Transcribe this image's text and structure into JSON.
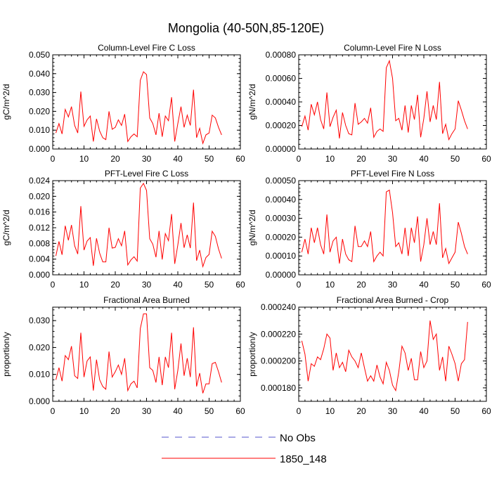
{
  "figure": {
    "title": "Mongolia (40-50N,85-120E)",
    "legend": {
      "placement": "bottom-center",
      "entries": [
        {
          "label": "No Obs",
          "color": "#5555cc",
          "style": "dashed"
        },
        {
          "label": "1850_148",
          "color": "#ff0000",
          "style": "solid"
        }
      ]
    },
    "series_color": "#ff0000"
  },
  "chart_data": [
    {
      "type": "line",
      "title": "Column-Level Fire C Loss",
      "ylabel": "gC/m^2/d",
      "xlim": [
        0,
        60
      ],
      "ylim": [
        0,
        0.05
      ],
      "xticks": [
        "0",
        "10",
        "20",
        "30",
        "40",
        "50",
        "60"
      ],
      "yticks": [
        0,
        0.01,
        0.02,
        0.03,
        0.04,
        0.05
      ],
      "ytick_labels": [
        "0.000",
        "0.010",
        "0.020",
        "0.030",
        "0.040",
        "0.050"
      ],
      "series": [
        {
          "name": "1850_148",
          "x": [
            1,
            2,
            3,
            4,
            5,
            6,
            7,
            8,
            9,
            10,
            11,
            12,
            13,
            14,
            15,
            16,
            17,
            18,
            19,
            20,
            21,
            22,
            23,
            24,
            25,
            26,
            27,
            28,
            29,
            30,
            31,
            32,
            33,
            34,
            35,
            36,
            37,
            38,
            39,
            40,
            41,
            42,
            43,
            44,
            45,
            46,
            47,
            48,
            49,
            50,
            51,
            52,
            53,
            54
          ],
          "y": [
            0.0085,
            0.0135,
            0.008,
            0.021,
            0.017,
            0.0225,
            0.0125,
            0.0085,
            0.0305,
            0.012,
            0.0155,
            0.0175,
            0.004,
            0.016,
            0.0095,
            0.006,
            0.005,
            0.02,
            0.0105,
            0.0115,
            0.0155,
            0.0125,
            0.0185,
            0.004,
            0.0065,
            0.008,
            0.0065,
            0.0365,
            0.041,
            0.0395,
            0.0165,
            0.0135,
            0.0075,
            0.019,
            0.0065,
            0.0175,
            0.015,
            0.0275,
            0.004,
            0.0135,
            0.0225,
            0.0115,
            0.018,
            0.0125,
            0.0315,
            0.006,
            0.011,
            0.003,
            0.0075,
            0.0085,
            0.018,
            0.0165,
            0.0115,
            0.0075
          ]
        }
      ]
    },
    {
      "type": "line",
      "title": "Column-Level Fire N Loss",
      "ylabel": "gN/m^2/d",
      "xlim": [
        0,
        60
      ],
      "ylim": [
        0,
        0.0008
      ],
      "xticks": [
        "0",
        "10",
        "20",
        "30",
        "40",
        "50",
        "60"
      ],
      "yticks": [
        0,
        0.0002,
        0.0004,
        0.0006,
        0.0008
      ],
      "ytick_labels": [
        "0.00000",
        "0.00020",
        "0.00040",
        "0.00060",
        "0.00080"
      ],
      "series": [
        {
          "name": "1850_148",
          "x": [
            1,
            2,
            3,
            4,
            5,
            6,
            7,
            8,
            9,
            10,
            11,
            12,
            13,
            14,
            15,
            16,
            17,
            18,
            19,
            20,
            21,
            22,
            23,
            24,
            25,
            26,
            27,
            28,
            29,
            30,
            31,
            32,
            33,
            34,
            35,
            36,
            37,
            38,
            39,
            40,
            41,
            42,
            43,
            44,
            45,
            46,
            47,
            48,
            49,
            50,
            51,
            52,
            53,
            54
          ],
          "y": [
            0.00019,
            0.00028,
            0.00016,
            0.00038,
            0.00029,
            0.0004,
            0.00025,
            0.00017,
            0.00048,
            0.00019,
            0.00027,
            0.00033,
            9e-05,
            0.00031,
            0.0002,
            0.00013,
            0.00012,
            0.00039,
            0.00021,
            0.00023,
            0.00026,
            0.00022,
            0.00035,
            0.0001,
            0.00015,
            0.00017,
            0.00015,
            0.00069,
            0.00075,
            0.0006,
            0.00024,
            0.00026,
            0.00016,
            0.00037,
            0.00014,
            0.00037,
            0.00025,
            0.00046,
            0.0001,
            0.00026,
            0.00049,
            0.00023,
            0.00037,
            0.00025,
            0.00057,
            0.00013,
            0.00021,
            8e-05,
            0.00013,
            0.00017,
            0.00041,
            0.00033,
            0.00024,
            0.00017
          ]
        }
      ]
    },
    {
      "type": "line",
      "title": "PFT-Level Fire C Loss",
      "ylabel": "gC/m^2/d",
      "xlim": [
        0,
        60
      ],
      "ylim": [
        0,
        0.024
      ],
      "xticks": [
        "0",
        "10",
        "20",
        "30",
        "40",
        "50",
        "60"
      ],
      "yticks": [
        0,
        0.004,
        0.008,
        0.012,
        0.016,
        0.02,
        0.024
      ],
      "ytick_labels": [
        "0.000",
        "0.004",
        "0.008",
        "0.012",
        "0.016",
        "0.020",
        "0.024"
      ],
      "series": [
        {
          "name": "1850_148",
          "x": [
            1,
            2,
            3,
            4,
            5,
            6,
            7,
            8,
            9,
            10,
            11,
            12,
            13,
            14,
            15,
            16,
            17,
            18,
            19,
            20,
            21,
            22,
            23,
            24,
            25,
            26,
            27,
            28,
            29,
            30,
            31,
            32,
            33,
            34,
            35,
            36,
            37,
            38,
            39,
            40,
            41,
            42,
            43,
            44,
            45,
            46,
            47,
            48,
            49,
            50,
            51,
            52,
            53,
            54
          ],
          "y": [
            0.0048,
            0.0085,
            0.0051,
            0.0125,
            0.0088,
            0.0127,
            0.0074,
            0.0053,
            0.0175,
            0.0063,
            0.0086,
            0.0095,
            0.0023,
            0.0093,
            0.0055,
            0.0033,
            0.0033,
            0.012,
            0.0068,
            0.007,
            0.0092,
            0.0074,
            0.0112,
            0.0025,
            0.0038,
            0.0046,
            0.0035,
            0.0221,
            0.0233,
            0.0215,
            0.0092,
            0.0078,
            0.0045,
            0.0112,
            0.0039,
            0.0105,
            0.0087,
            0.0155,
            0.0028,
            0.0076,
            0.0132,
            0.0069,
            0.0102,
            0.0068,
            0.0184,
            0.0036,
            0.0063,
            0.0021,
            0.0044,
            0.0052,
            0.0111,
            0.0098,
            0.0066,
            0.0042
          ]
        }
      ]
    },
    {
      "type": "line",
      "title": "PFT-Level Fire N Loss",
      "ylabel": "gN/m^2/d",
      "xlim": [
        0,
        60
      ],
      "ylim": [
        0,
        0.0005
      ],
      "xticks": [
        "0",
        "10",
        "20",
        "30",
        "40",
        "50",
        "60"
      ],
      "yticks": [
        0,
        0.0001,
        0.0002,
        0.0003,
        0.0004,
        0.0005
      ],
      "ytick_labels": [
        "0.00000",
        "0.00010",
        "0.00020",
        "0.00030",
        "0.00040",
        "0.00050"
      ],
      "series": [
        {
          "name": "1850_148",
          "x": [
            1,
            2,
            3,
            4,
            5,
            6,
            7,
            8,
            9,
            10,
            11,
            12,
            13,
            14,
            15,
            16,
            17,
            18,
            19,
            20,
            21,
            22,
            23,
            24,
            25,
            26,
            27,
            28,
            29,
            30,
            31,
            32,
            33,
            34,
            35,
            36,
            37,
            38,
            39,
            40,
            41,
            42,
            43,
            44,
            45,
            46,
            47,
            48,
            49,
            50,
            51,
            52,
            53,
            54
          ],
          "y": [
            0.00012,
            0.00019,
            0.00011,
            0.00025,
            0.00017,
            0.00025,
            0.00016,
            0.00011,
            0.00032,
            0.00012,
            0.00018,
            0.0002,
            6e-05,
            0.00019,
            0.00011,
            8e-05,
            7e-05,
            0.00026,
            0.00015,
            0.00015,
            0.00018,
            0.00015,
            0.00023,
            7e-05,
            0.0001,
            0.00012,
            0.0001,
            0.00044,
            0.00045,
            0.00033,
            0.00015,
            0.00017,
            0.00011,
            0.00025,
            0.0001,
            0.00025,
            0.00017,
            0.00031,
            7e-05,
            0.00016,
            0.0003,
            0.00016,
            0.00023,
            0.00016,
            0.00038,
            9e-05,
            0.00014,
            6e-05,
            9e-05,
            0.00012,
            0.00028,
            0.00022,
            0.00015,
            0.00011
          ]
        }
      ]
    },
    {
      "type": "line",
      "title": "Fractional Area Burned",
      "ylabel": "proportion/y",
      "xlim": [
        0,
        60
      ],
      "ylim": [
        0,
        0.035
      ],
      "xticks": [
        "0",
        "10",
        "20",
        "30",
        "40",
        "50",
        "60"
      ],
      "yticks": [
        0,
        0.01,
        0.02,
        0.03
      ],
      "ytick_labels": [
        "0.000",
        "0.010",
        "0.020",
        "0.030"
      ],
      "series": [
        {
          "name": "1850_148",
          "x": [
            1,
            2,
            3,
            4,
            5,
            6,
            7,
            8,
            9,
            10,
            11,
            12,
            13,
            14,
            15,
            16,
            17,
            18,
            19,
            20,
            21,
            22,
            23,
            24,
            25,
            26,
            27,
            28,
            29,
            30,
            31,
            32,
            33,
            34,
            35,
            36,
            37,
            38,
            39,
            40,
            41,
            42,
            43,
            44,
            45,
            46,
            47,
            48,
            49,
            50,
            51,
            52,
            53,
            54
          ],
          "y": [
            0.008,
            0.0125,
            0.0075,
            0.017,
            0.0155,
            0.0205,
            0.0095,
            0.0085,
            0.0255,
            0.009,
            0.015,
            0.0165,
            0.004,
            0.0155,
            0.008,
            0.0055,
            0.0045,
            0.0185,
            0.009,
            0.011,
            0.0135,
            0.01,
            0.016,
            0.004,
            0.0065,
            0.0075,
            0.005,
            0.027,
            0.0325,
            0.0325,
            0.0125,
            0.0115,
            0.007,
            0.0165,
            0.006,
            0.0165,
            0.0125,
            0.0255,
            0.0045,
            0.0115,
            0.0215,
            0.0095,
            0.016,
            0.009,
            0.0275,
            0.0055,
            0.0105,
            0.003,
            0.0065,
            0.0065,
            0.014,
            0.0145,
            0.011,
            0.007
          ]
        }
      ]
    },
    {
      "type": "line",
      "title": "Fractional Area Burned - Crop",
      "ylabel": "proportion/y",
      "xlim": [
        0,
        60
      ],
      "ylim": [
        0.00017,
        0.00024
      ],
      "xticks": [
        "0",
        "10",
        "20",
        "30",
        "40",
        "50",
        "60"
      ],
      "yticks": [
        0.00018,
        0.0002,
        0.00022,
        0.00024
      ],
      "ytick_labels": [
        "0.000180",
        "0.000200",
        "0.000220",
        "0.000240"
      ],
      "series": [
        {
          "name": "1850_148",
          "x": [
            1,
            2,
            3,
            4,
            5,
            6,
            7,
            8,
            9,
            10,
            11,
            12,
            13,
            14,
            15,
            16,
            17,
            18,
            19,
            20,
            21,
            22,
            23,
            24,
            25,
            26,
            27,
            28,
            29,
            30,
            31,
            32,
            33,
            34,
            35,
            36,
            37,
            38,
            39,
            40,
            41,
            42,
            43,
            44,
            45,
            46,
            47,
            48,
            49,
            50,
            51,
            52,
            53,
            54
          ],
          "y": [
            0.000215,
            0.000205,
            0.000185,
            0.000198,
            0.000196,
            0.000203,
            0.000201,
            0.000209,
            0.00022,
            0.000217,
            0.000193,
            0.000206,
            0.000195,
            0.000199,
            0.000192,
            0.000208,
            0.000203,
            0.0002,
            0.000195,
            0.000206,
            0.000195,
            0.000185,
            0.000189,
            0.000185,
            0.000197,
            0.000188,
            0.000183,
            0.000199,
            0.000193,
            0.000182,
            0.000178,
            0.000192,
            0.000211,
            0.000206,
            0.000193,
            0.000202,
            0.000186,
            0.000186,
            0.000207,
            0.000195,
            0.0002,
            0.00023,
            0.000216,
            0.00022,
            0.000193,
            0.000203,
            0.000185,
            0.000211,
            0.000205,
            0.000198,
            0.000185,
            0.000198,
            0.000201,
            0.000229
          ]
        }
      ]
    }
  ]
}
